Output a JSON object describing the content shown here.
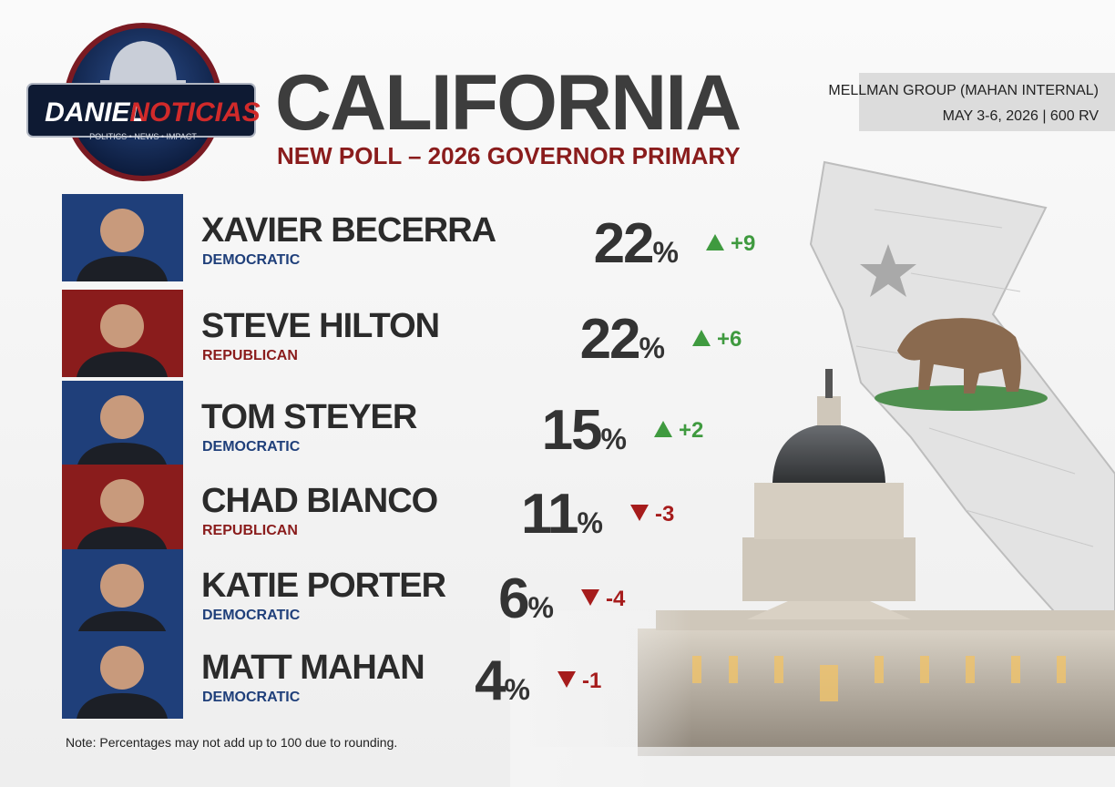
{
  "brand": {
    "name_first": "DANIEL",
    "name_second": "NOTICIAS",
    "tagline": "POLITICS • NEWS • IMPACT"
  },
  "header": {
    "title": "CALIFORNIA",
    "subtitle": "NEW POLL – 2026 GOVERNOR PRIMARY"
  },
  "source": {
    "pollster": "MELLMAN GROUP (MAHAN INTERNAL)",
    "details": "MAY 3-6, 2026 | 600 RV"
  },
  "unit": "%",
  "candidates": [
    {
      "name": "XAVIER BECERRA",
      "party": "DEMOCRATIC",
      "share": 22,
      "change": "+9",
      "color": "#1f3f7a"
    },
    {
      "name": "STEVE HILTON",
      "party": "REPUBLICAN",
      "share": 22,
      "change": "+6",
      "color": "#8a1c1c"
    },
    {
      "name": "TOM STEYER",
      "party": "DEMOCRATIC",
      "share": 15,
      "change": "+2",
      "color": "#1f3f7a"
    },
    {
      "name": "CHAD BIANCO",
      "party": "REPUBLICAN",
      "share": 11,
      "change": "-3",
      "color": "#8a1c1c"
    },
    {
      "name": "KATIE PORTER",
      "party": "DEMOCRATIC",
      "share": 6,
      "change": "-4",
      "color": "#1f3f7a"
    },
    {
      "name": "MATT MAHAN",
      "party": "DEMOCRATIC",
      "share": 4,
      "change": "-1",
      "color": "#1f3f7a"
    }
  ],
  "note": "Note: Percentages may not add up to 100 due to rounding."
}
